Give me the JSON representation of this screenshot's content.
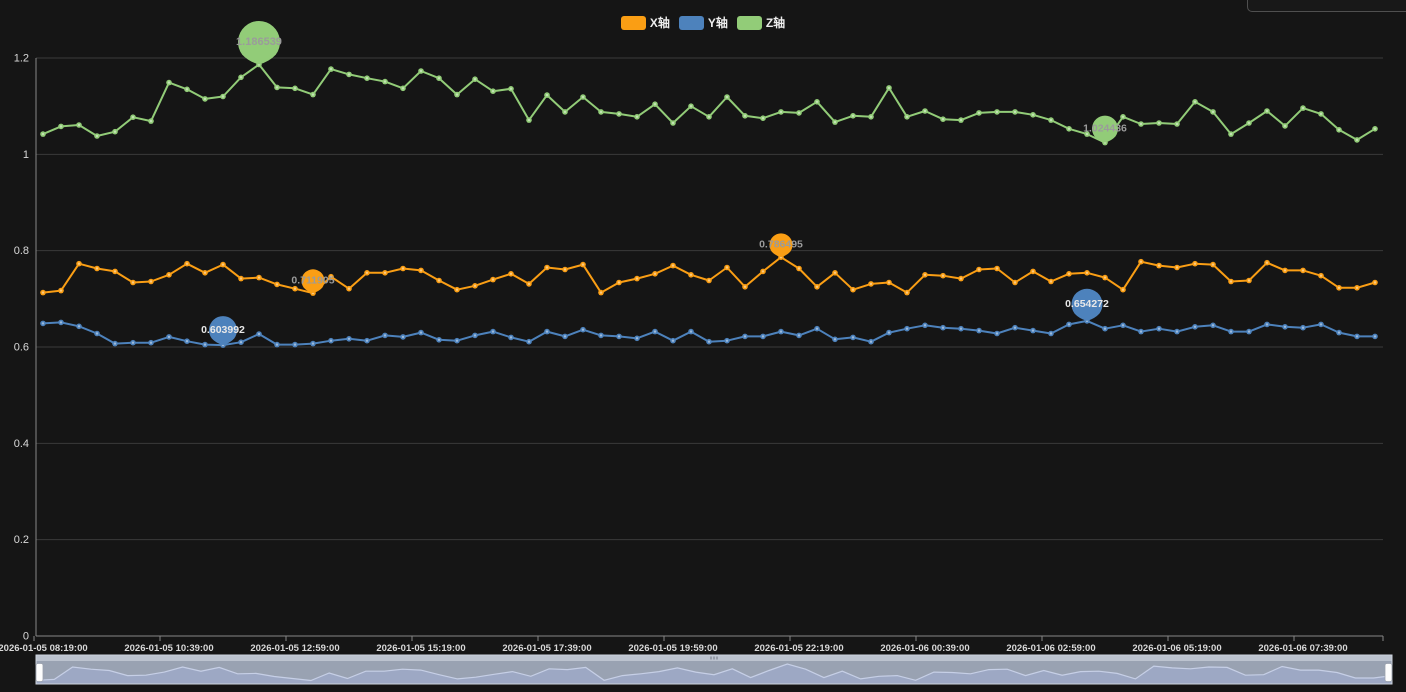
{
  "app": {
    "background": "#151515",
    "grid_line_color": "#3a3a3a",
    "axis_line_color": "#868686",
    "axis_label_color": "#d9d9d9"
  },
  "legend": {
    "position": "top-center",
    "items": [
      {
        "label": "X轴",
        "color": "#fa9e14"
      },
      {
        "label": "Y轴",
        "color": "#4d82bc"
      },
      {
        "label": "Z轴",
        "color": "#92cc78"
      }
    ]
  },
  "chart_data": {
    "type": "line",
    "title": "",
    "xlabel": "",
    "ylabel": "",
    "ylim": [
      0,
      1.2
    ],
    "y_tick_labels": [
      "0",
      "0.2",
      "0.4",
      "0.6",
      "0.8",
      "1",
      "1.2"
    ],
    "y_tick_values": [
      0,
      0.2,
      0.4,
      0.6,
      0.8,
      1.0,
      1.2
    ],
    "grid": true,
    "legend_position": "top-center",
    "x_start": "2026-01-05 08:19:00",
    "x_interval_minutes": 20,
    "x_points": 75,
    "x_tick_labels": [
      "2026-01-05 08:19:00",
      "2026-01-05 10:39:00",
      "2026-01-05 12:59:00",
      "2026-01-05 15:19:00",
      "2026-01-05 17:39:00",
      "2026-01-05 19:59:00",
      "2026-01-05 22:19:00",
      "2026-01-06 00:39:00",
      "2026-01-06 02:59:00",
      "2026-01-06 05:19:00",
      "2026-01-06 07:39:00"
    ],
    "x_label_every_n_points": 7,
    "series": [
      {
        "name": "X轴",
        "color": "#fa9e14",
        "markpoint_label_color": "#9b9b9b",
        "values": [
          0.713,
          0.717,
          0.773,
          0.763,
          0.757,
          0.734,
          0.736,
          0.75,
          0.773,
          0.754,
          0.771,
          0.742,
          0.744,
          0.73,
          0.721,
          0.711905,
          0.746,
          0.721,
          0.754,
          0.754,
          0.763,
          0.759,
          0.738,
          0.719,
          0.727,
          0.74,
          0.752,
          0.731,
          0.765,
          0.761,
          0.771,
          0.713,
          0.734,
          0.742,
          0.752,
          0.769,
          0.75,
          0.738,
          0.765,
          0.725,
          0.757,
          0.786495,
          0.763,
          0.725,
          0.754,
          0.719,
          0.731,
          0.734,
          0.713,
          0.75,
          0.748,
          0.742,
          0.761,
          0.763,
          0.734,
          0.757,
          0.736,
          0.752,
          0.754,
          0.744,
          0.719,
          0.777,
          0.769,
          0.765,
          0.773,
          0.771,
          0.736,
          0.738,
          0.775,
          0.759,
          0.759,
          0.748,
          0.723,
          0.723,
          0.734
        ],
        "markpoints": [
          {
            "type": "min",
            "index": 15,
            "label": "0.711905",
            "size": 23
          },
          {
            "type": "max",
            "index": 41,
            "label": "0.786495",
            "size": 23
          }
        ]
      },
      {
        "name": "Y轴",
        "color": "#4d82bc",
        "markpoint_label_color": "#e8e8e8",
        "values": [
          0.649,
          0.651,
          0.643,
          0.628,
          0.607,
          0.609,
          0.609,
          0.621,
          0.612,
          0.605,
          0.603992,
          0.61,
          0.627,
          0.605,
          0.605,
          0.607,
          0.613,
          0.617,
          0.613,
          0.624,
          0.621,
          0.63,
          0.615,
          0.613,
          0.624,
          0.632,
          0.62,
          0.611,
          0.632,
          0.622,
          0.636,
          0.624,
          0.622,
          0.618,
          0.632,
          0.613,
          0.632,
          0.611,
          0.613,
          0.622,
          0.622,
          0.632,
          0.624,
          0.638,
          0.616,
          0.62,
          0.611,
          0.63,
          0.638,
          0.645,
          0.64,
          0.638,
          0.634,
          0.628,
          0.64,
          0.634,
          0.628,
          0.647,
          0.654272,
          0.638,
          0.645,
          0.632,
          0.638,
          0.632,
          0.642,
          0.645,
          0.632,
          0.632,
          0.647,
          0.642,
          0.64,
          0.647,
          0.63,
          0.622,
          0.622
        ],
        "markpoints": [
          {
            "type": "min",
            "index": 10,
            "label": "0.603992",
            "size": 28
          },
          {
            "type": "max",
            "index": 58,
            "label": "0.654272",
            "size": 31
          }
        ]
      },
      {
        "name": "Z轴",
        "color": "#92cc78",
        "markpoint_label_color": "#9b9b9b",
        "values": [
          1.042,
          1.058,
          1.061,
          1.038,
          1.047,
          1.077,
          1.069,
          1.149,
          1.135,
          1.115,
          1.12,
          1.16,
          1.186539,
          1.139,
          1.137,
          1.124,
          1.177,
          1.166,
          1.158,
          1.151,
          1.137,
          1.173,
          1.158,
          1.124,
          1.156,
          1.131,
          1.136,
          1.071,
          1.123,
          1.088,
          1.119,
          1.088,
          1.084,
          1.078,
          1.104,
          1.065,
          1.1,
          1.078,
          1.119,
          1.08,
          1.075,
          1.088,
          1.086,
          1.109,
          1.067,
          1.08,
          1.078,
          1.138,
          1.078,
          1.09,
          1.073,
          1.071,
          1.086,
          1.088,
          1.088,
          1.082,
          1.071,
          1.053,
          1.042,
          1.024436,
          1.078,
          1.063,
          1.065,
          1.063,
          1.109,
          1.088,
          1.042,
          1.065,
          1.09,
          1.059,
          1.096,
          1.084,
          1.051,
          1.03,
          1.053
        ],
        "markpoints": [
          {
            "type": "max",
            "index": 12,
            "label": "1.186539",
            "size": 42
          },
          {
            "type": "min",
            "index": 59,
            "label": "1.024436",
            "size": 26
          }
        ]
      }
    ],
    "datazoom": {
      "type": "slider",
      "full_range_selected": true,
      "shadow_series": "X轴",
      "track_color": "#99a2b2",
      "move_handle_color": "#bcc3cf",
      "shadow_fill": "#9da8c4",
      "shadow_line": "#c6cfe6",
      "handle_color": "#fdfdfd",
      "border_color": "#cdd3dd"
    }
  }
}
